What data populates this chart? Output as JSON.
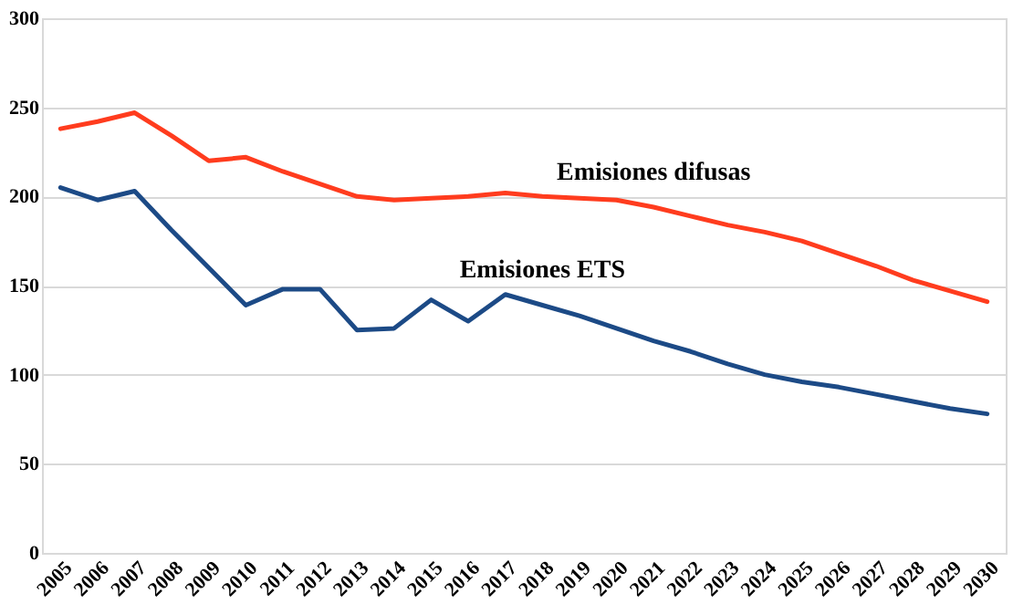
{
  "chart_data": {
    "type": "line",
    "categories": [
      "2005",
      "2006",
      "2007",
      "2008",
      "2009",
      "2010",
      "2011",
      "2012",
      "2013",
      "2014",
      "2015",
      "2016",
      "2017",
      "2018",
      "2019",
      "2020",
      "2021",
      "2022",
      "2023",
      "2024",
      "2025",
      "2026",
      "2027",
      "2028",
      "2029",
      "2030"
    ],
    "series": [
      {
        "name": "Emisiones difusas",
        "color": "#ff3c1e",
        "values": [
          238,
          242,
          247,
          234,
          220,
          222,
          214,
          207,
          200,
          198,
          199,
          200,
          202,
          200,
          199,
          198,
          194,
          189,
          184,
          180,
          175,
          168,
          161,
          153,
          147,
          141
        ]
      },
      {
        "name": "Emisiones ETS",
        "color": "#1c4a86",
        "values": [
          205,
          198,
          203,
          181,
          160,
          139,
          148,
          148,
          125,
          126,
          142,
          130,
          145,
          139,
          133,
          126,
          119,
          113,
          106,
          100,
          96,
          93,
          89,
          85,
          81,
          78
        ]
      }
    ],
    "ylim": [
      0,
      300
    ],
    "yticks": [
      0,
      50,
      100,
      150,
      200,
      250,
      300
    ],
    "grid": "y",
    "marker": "none",
    "line_style": "solid"
  }
}
